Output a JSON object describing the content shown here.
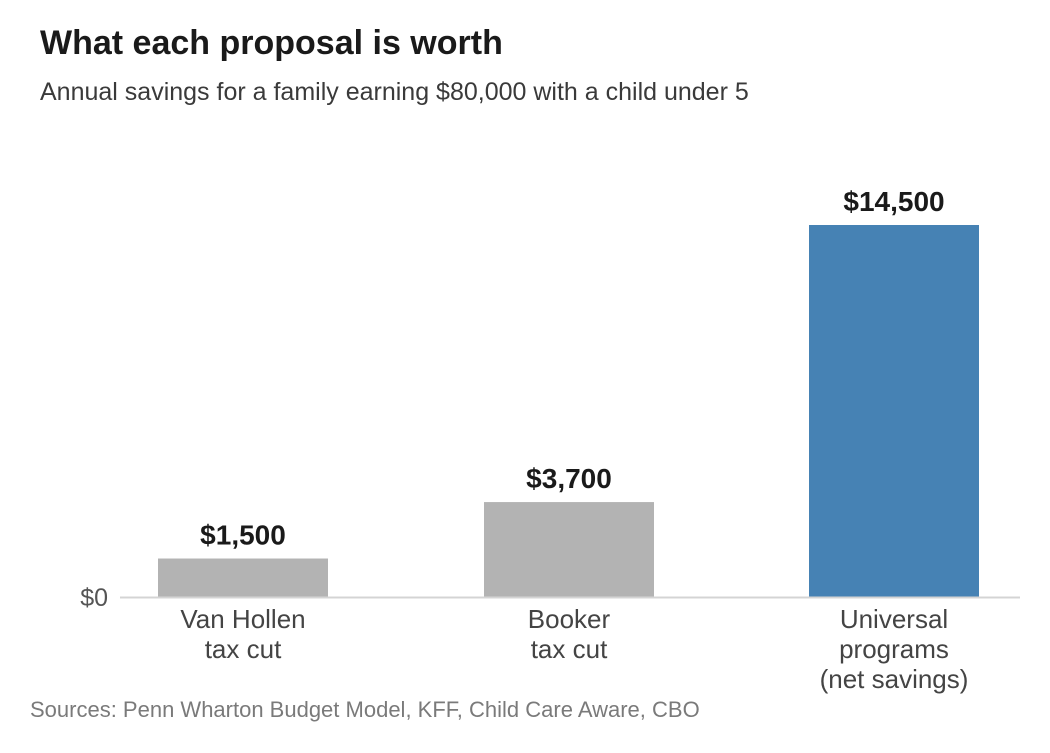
{
  "title": "What each proposal is worth",
  "subtitle": "Annual savings for a family earning $80,000 with a child under 5",
  "source": "Sources: Penn Wharton Budget Model, KFF, Child Care Aware, CBO",
  "chart_data": {
    "type": "bar",
    "categories": [
      [
        "Van Hollen",
        "tax cut"
      ],
      [
        "Booker",
        "tax cut"
      ],
      [
        "Universal",
        "programs",
        "(net savings)"
      ]
    ],
    "values": [
      1500,
      3700,
      14500
    ],
    "value_labels": [
      "$1,500",
      "$3,700",
      "$14,500"
    ],
    "bar_colors": [
      "#b3b3b3",
      "#b3b3b3",
      "#4682b4"
    ],
    "y_tick_labels": [
      "$0"
    ],
    "y_ticks": [
      0
    ],
    "ylim": [
      0,
      14500
    ],
    "grid": false,
    "legend": "none"
  }
}
